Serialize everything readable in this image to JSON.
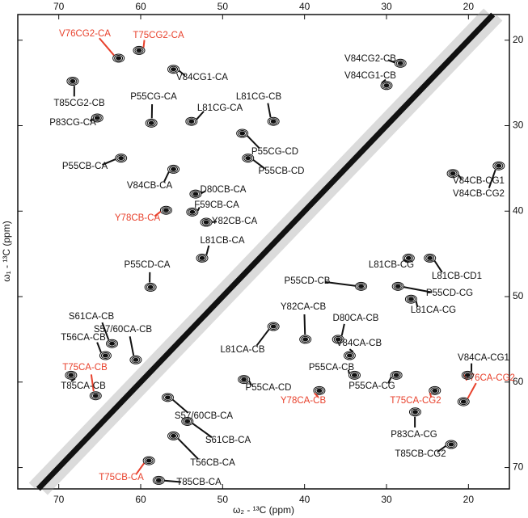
{
  "chart_data": {
    "type": "nmr2d",
    "x_label": "ω₂ - ¹³C (ppm)",
    "y_label": "ω₁ - ¹³C (ppm)",
    "xlim": [
      75,
      15
    ],
    "ylim": [
      17,
      72.5
    ],
    "xticks": [
      70,
      60,
      50,
      40,
      30,
      20
    ],
    "yticks": [
      20,
      30,
      40,
      50,
      60,
      70
    ],
    "annotations": [
      {
        "text": "V76CG2-CA",
        "x": 62.7,
        "y": 22.1,
        "color": "#e8412c"
      },
      {
        "text": "T75CG2-CA",
        "x": 60.2,
        "y": 21.2,
        "color": "#e8412c"
      },
      {
        "text": "V84CG1-CA",
        "x": 56.0,
        "y": 23.4,
        "color": "#111111"
      },
      {
        "text": "T85CG2-CB",
        "x": 68.3,
        "y": 24.8,
        "color": "#111111"
      },
      {
        "text": "P55CG-CA",
        "x": 58.7,
        "y": 29.7,
        "color": "#111111"
      },
      {
        "text": "P83CG-CA",
        "x": 65.3,
        "y": 29.1,
        "color": "#111111"
      },
      {
        "text": "L81CG-CA",
        "x": 53.8,
        "y": 29.5,
        "color": "#111111"
      },
      {
        "text": "L81CG-CB",
        "x": 43.8,
        "y": 29.5,
        "color": "#111111"
      },
      {
        "text": "V84CG2-CB",
        "x": 28.3,
        "y": 22.7,
        "color": "#111111"
      },
      {
        "text": "V84CG1-CB",
        "x": 30.0,
        "y": 25.3,
        "color": "#111111"
      },
      {
        "text": "P55CG-CD",
        "x": 47.6,
        "y": 30.9,
        "color": "#111111"
      },
      {
        "text": "P55CB-CD",
        "x": 46.9,
        "y": 33.8,
        "color": "#111111"
      },
      {
        "text": "P55CB-CA",
        "x": 62.4,
        "y": 33.8,
        "color": "#111111"
      },
      {
        "text": "V84CB-CA",
        "x": 56.0,
        "y": 35.1,
        "color": "#111111"
      },
      {
        "text": "D80CB-CA",
        "x": 53.3,
        "y": 38.0,
        "color": "#111111"
      },
      {
        "text": "Y78CB-CA",
        "x": 56.9,
        "y": 39.9,
        "color": "#e8412c"
      },
      {
        "text": "F59CB-CA",
        "x": 53.7,
        "y": 40.1,
        "color": "#111111"
      },
      {
        "text": "Y82CB-CA",
        "x": 52.0,
        "y": 41.3,
        "color": "#111111"
      },
      {
        "text": "L81CB-CA",
        "x": 52.5,
        "y": 45.5,
        "color": "#111111"
      },
      {
        "text": "P55CD-CA",
        "x": 58.8,
        "y": 48.9,
        "color": "#111111"
      },
      {
        "text": "V84CB-CG1",
        "x": 21.9,
        "y": 35.6,
        "color": "#111111"
      },
      {
        "text": "V84CB-CG2",
        "x": 16.3,
        "y": 34.7,
        "color": "#111111"
      },
      {
        "text": "L81CB-CG",
        "x": 27.3,
        "y": 45.5,
        "color": "#111111"
      },
      {
        "text": "L81CB-CD1",
        "x": 24.7,
        "y": 45.5,
        "color": "#111111"
      },
      {
        "text": "P55CD-CB",
        "x": 33.1,
        "y": 48.8,
        "color": "#111111"
      },
      {
        "text": "P55CD-CG",
        "x": 28.6,
        "y": 48.8,
        "color": "#111111"
      },
      {
        "text": "L81CA-CG",
        "x": 27.0,
        "y": 50.3,
        "color": "#111111"
      },
      {
        "text": "Y82CA-CB",
        "x": 39.9,
        "y": 55.0,
        "color": "#111111"
      },
      {
        "text": "D80CA-CB",
        "x": 35.9,
        "y": 55.0,
        "color": "#111111"
      },
      {
        "text": "V84CA-CB",
        "x": 34.5,
        "y": 56.9,
        "color": "#111111"
      },
      {
        "text": "L81CA-CB",
        "x": 43.8,
        "y": 53.5,
        "color": "#111111"
      },
      {
        "text": "S61CA-CB",
        "x": 63.5,
        "y": 55.5,
        "color": "#111111"
      },
      {
        "text": "T56CA-CB",
        "x": 64.3,
        "y": 56.9,
        "color": "#111111"
      },
      {
        "text": "S57/60CA-CB",
        "x": 60.6,
        "y": 57.4,
        "color": "#111111"
      },
      {
        "text": "T75CA-CB",
        "x": 65.5,
        "y": 61.6,
        "color": "#e8412c"
      },
      {
        "text": "T85CA-CB",
        "x": 68.5,
        "y": 59.2,
        "color": "#111111"
      },
      {
        "text": "P55CA-CB",
        "x": 33.9,
        "y": 59.2,
        "color": "#111111"
      },
      {
        "text": "P55CA-CG",
        "x": 28.8,
        "y": 59.2,
        "color": "#111111"
      },
      {
        "text": "P55CA-CD",
        "x": 47.4,
        "y": 59.7,
        "color": "#111111"
      },
      {
        "text": "Y78CA-CB",
        "x": 38.2,
        "y": 61.0,
        "color": "#e8412c"
      },
      {
        "text": "S57/60CB-CA",
        "x": 56.7,
        "y": 61.8,
        "color": "#111111"
      },
      {
        "text": "T75CA-CG2",
        "x": 24.1,
        "y": 61.0,
        "color": "#e8412c"
      },
      {
        "text": "V76CA-CG2",
        "x": 20.6,
        "y": 62.3,
        "color": "#e8412c"
      },
      {
        "text": "V84CA-CG1",
        "x": 20.1,
        "y": 59.2,
        "color": "#111111"
      },
      {
        "text": "S61CB-CA",
        "x": 54.3,
        "y": 64.6,
        "color": "#111111"
      },
      {
        "text": "P83CA-CG",
        "x": 26.5,
        "y": 63.5,
        "color": "#111111"
      },
      {
        "text": "T56CB-CA",
        "x": 56.0,
        "y": 66.3,
        "color": "#111111"
      },
      {
        "text": "T85CB-CG2",
        "x": 22.1,
        "y": 67.3,
        "color": "#111111"
      },
      {
        "text": "T75CB-CA",
        "x": 59.0,
        "y": 69.2,
        "color": "#e8412c"
      },
      {
        "text": "T85CB-CA",
        "x": 57.8,
        "y": 71.5,
        "color": "#111111"
      }
    ]
  }
}
